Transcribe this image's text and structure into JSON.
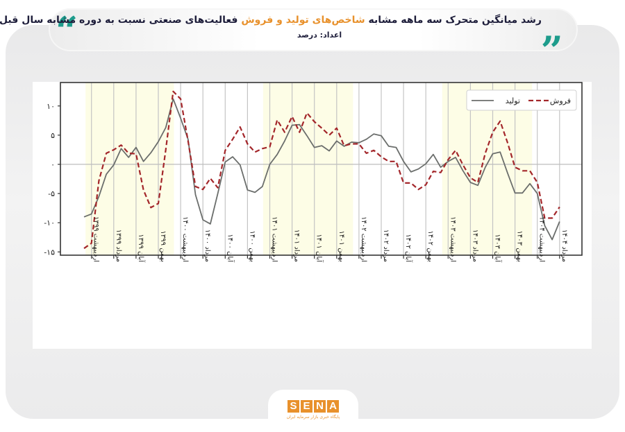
{
  "header": {
    "title_part1": "رشد میانگین متحرک سه ماهه مشابه ",
    "title_highlight": "شاخص‌های تولید و فروش",
    "title_part2": " فعالیت‌های صنعتی نسبت به دوره مشابه سال قبل",
    "subtitle": "اعداد:  درصد",
    "quote_color": "#1e9c8c",
    "highlight_color": "#e8912c"
  },
  "logo": {
    "letters": [
      "S",
      "E",
      "N",
      "A"
    ],
    "tagline": "پایگاه خبری بازار سرمایه ایران"
  },
  "chart_data": {
    "type": "line",
    "title": "رشد میانگین متحرک سه ماهه مشابه شاخص‌های تولید و فروش فعالیت‌های صنعتی نسبت به دوره مشابه سال قبل",
    "xlabel": "",
    "ylabel": "درصد",
    "ylim": [
      -16,
      13.5
    ],
    "yticks": [
      10,
      5,
      0,
      -5,
      -10,
      -15
    ],
    "ytick_labels": [
      "۱۰",
      "۵",
      "۰",
      "-۵",
      "-۱۰",
      "-۱۵"
    ],
    "grid": true,
    "legend_position": "upper right",
    "x_start": "فروردین ۱۳۹۹",
    "x_end": "مرداد ۱۴۰۴",
    "tick_labels": [
      "اردیبهشت ۱۳۹۹",
      "مرداد ۱۳۹۹",
      "آبان ۱۳۹۹",
      "بهمن ۱۳۹۹",
      "اردیبهشت ۱۴۰۰",
      "مرداد ۱۴۰۰",
      "آبان ۱۴۰۰",
      "بهمن ۱۴۰۰",
      "اردیبهشت ۱۴۰۱",
      "مرداد ۱۴۰۱",
      "آبان ۱۴۰۱",
      "بهمن ۱۴۰۱",
      "اردیبهشت ۱۴۰۲",
      "مرداد ۱۴۰۲",
      "آبان ۱۴۰۲",
      "بهمن ۱۴۰۲",
      "اردیبهشت ۱۴۰۳",
      "مرداد ۱۴۰۳",
      "آبان ۱۴۰۳",
      "بهمن ۱۴۰۳",
      "اردیبهشت ۱۴۰۴",
      "مرداد ۱۴۰۴"
    ],
    "tick_month_index": [
      1,
      4,
      7,
      10,
      13,
      16,
      19,
      22,
      25,
      28,
      31,
      34,
      37,
      40,
      43,
      46,
      49,
      52,
      55,
      58,
      61,
      64
    ],
    "shaded_regions_month_index": [
      [
        0.2,
        12.1
      ],
      [
        24.1,
        36.2
      ],
      [
        48.2,
        60.3
      ]
    ],
    "shade_color": "#fdfde6",
    "series": [
      {
        "name": "تولید",
        "style": "solid",
        "color": "#6b6e6c",
        "values": [
          -9.0,
          -8.5,
          -5.5,
          -1.7,
          -0.1,
          2.7,
          1.2,
          2.9,
          0.5,
          2.0,
          3.9,
          6.3,
          11.2,
          7.9,
          4.3,
          -5.2,
          -9.5,
          -10.2,
          -5.0,
          0.4,
          1.3,
          -0.1,
          -4.4,
          -4.8,
          -3.8,
          0.0,
          1.7,
          4.0,
          6.7,
          6.8,
          4.9,
          2.9,
          3.2,
          2.3,
          4.0,
          3.1,
          3.8,
          3.7,
          4.3,
          5.2,
          4.9,
          3.1,
          2.9,
          0.5,
          -1.3,
          -0.8,
          0.1,
          1.7,
          -0.5,
          0.5,
          1.2,
          -1.1,
          -3.1,
          -3.6,
          -0.5,
          1.8,
          2.1,
          -1.5,
          -4.9,
          -4.9,
          -3.3,
          -5.0,
          -10.5,
          -12.9,
          -9.8
        ]
      },
      {
        "name": "فروش",
        "style": "dashed",
        "color": "#a3262a",
        "values": [
          -14.4,
          -13.5,
          -2.8,
          1.9,
          2.5,
          3.3,
          1.9,
          1.8,
          -4.4,
          -7.4,
          -6.7,
          2.5,
          12.5,
          11.2,
          4.0,
          -3.8,
          -4.3,
          -2.4,
          -4.0,
          2.4,
          4.3,
          6.4,
          3.5,
          2.1,
          2.7,
          3.0,
          7.6,
          5.5,
          8.2,
          5.5,
          8.8,
          7.3,
          6.2,
          5.0,
          6.2,
          3.2,
          3.5,
          3.5,
          1.9,
          2.4,
          1.3,
          0.5,
          0.5,
          -3.2,
          -3.2,
          -4.3,
          -3.5,
          -1.2,
          -1.4,
          0.8,
          2.4,
          -0.1,
          -2.3,
          -3.1,
          1.9,
          5.5,
          7.4,
          3.7,
          -0.5,
          -1.1,
          -1.1,
          -3.1,
          -9.2,
          -9.2,
          -7.3
        ]
      }
    ]
  }
}
